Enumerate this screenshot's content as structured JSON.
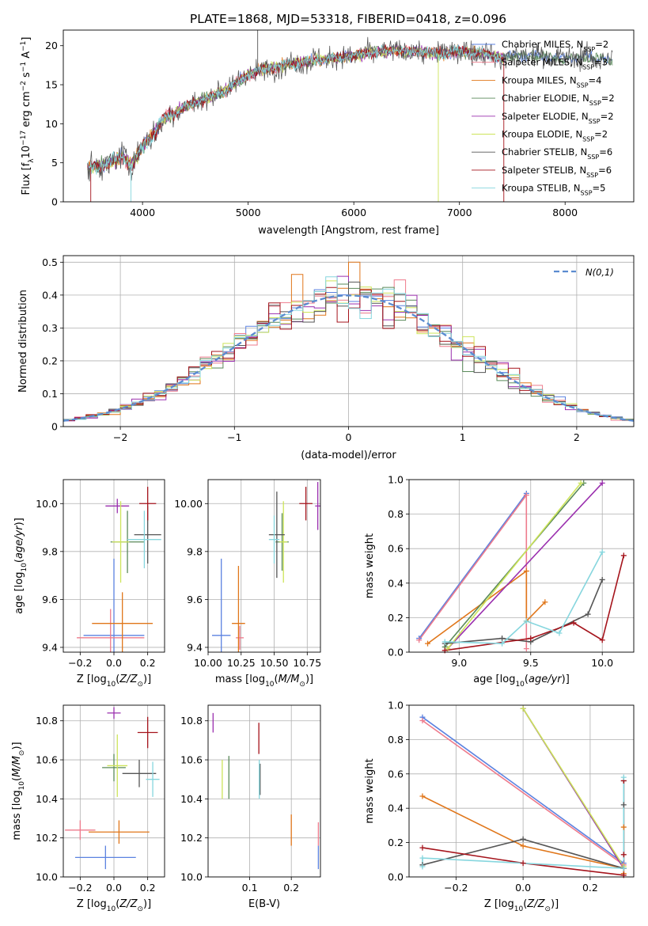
{
  "title": "PLATE=1868, MJD=53318, FIBERID=0418, z=0.096",
  "colors": {
    "Chabrier MILES": "#5b82e0",
    "Salpeter MILES": "#ee7b8c",
    "Kroupa MILES": "#e0761a",
    "Chabrier ELODIE": "#5a8a5a",
    "Salpeter ELODIE": "#9a2fae",
    "Kroupa ELODIE": "#cde45a",
    "Chabrier STELIB": "#555555",
    "Salpeter STELIB": "#a5141c",
    "Kroupa STELIB": "#86d6de",
    "gauss": "#5b8bd0"
  },
  "chart_data": [
    {
      "id": "spectrum",
      "type": "line",
      "xlabel": "wavelength [Angstrom, rest frame]",
      "ylabel": "Flux [f_λ 10^-17 erg cm^-2 s^-1 A^-1]",
      "xlim": [
        3250,
        8650
      ],
      "ylim": [
        0,
        22
      ],
      "xticks": [
        4000,
        5000,
        6000,
        7000,
        8000
      ],
      "yticks": [
        0,
        5,
        10,
        15,
        20
      ],
      "legend": "top-right",
      "data_x_range": [
        3480,
        8450
      ],
      "anchors": {
        "x": [
          3480,
          3600,
          3700,
          3800,
          3900,
          4000,
          4100,
          4200,
          4400,
          4600,
          4800,
          5000,
          5200,
          5400,
          5600,
          5800,
          6000,
          6200,
          6400,
          6600,
          6800,
          7000,
          7200,
          7400,
          7600,
          7800,
          8000,
          8200,
          8450
        ],
        "y": [
          4.4,
          4.6,
          5.0,
          5.8,
          4.8,
          7.2,
          8.6,
          10.6,
          12.2,
          13.2,
          14.4,
          16.3,
          17.2,
          17.6,
          18.1,
          18.4,
          18.7,
          19.2,
          19.4,
          19.2,
          19.0,
          19.3,
          19.1,
          18.5,
          18.8,
          18.7,
          18.3,
          18.6,
          18.0
        ]
      },
      "series": [
        {
          "name": "Chabrier MILES",
          "nssp": "2"
        },
        {
          "name": "Salpeter MILES",
          "nssp": "3"
        },
        {
          "name": "Kroupa MILES",
          "nssp": "4"
        },
        {
          "name": "Chabrier ELODIE",
          "nssp": "2"
        },
        {
          "name": "Salpeter ELODIE",
          "nssp": "2"
        },
        {
          "name": "Kroupa ELODIE",
          "nssp": "2"
        },
        {
          "name": "Chabrier STELIB",
          "nssp": "6"
        },
        {
          "name": "Salpeter STELIB",
          "nssp": "6"
        },
        {
          "name": "Kroupa STELIB",
          "nssp": "5"
        }
      ],
      "spikes": [
        {
          "series": "Chabrier STELIB",
          "x": 5090,
          "y_high": 22
        },
        {
          "series": "Kroupa ELODIE",
          "x": 6800,
          "y_low": 0
        },
        {
          "series": "Salpeter STELIB",
          "x": 7420,
          "y_low": 0
        },
        {
          "series": "Kroupa STELIB",
          "x": 3890,
          "y_low": 0
        },
        {
          "series": "Salpeter STELIB",
          "x": 3510,
          "y_low": 0
        }
      ]
    },
    {
      "id": "residuals",
      "type": "line",
      "xlabel": "(data-model)/error",
      "ylabel": "Normed distribution",
      "xlim": [
        -2.5,
        2.5
      ],
      "ylim": [
        0,
        0.52
      ],
      "xticks": [
        -2,
        -1,
        0,
        1,
        2
      ],
      "yticks": [
        0.0,
        0.1,
        0.2,
        0.3,
        0.4,
        0.5
      ],
      "legend": "top-right",
      "legend_label": "N(0,1)",
      "bin_width": 0.1,
      "bin_start": -2.5,
      "bins": 50
    },
    {
      "id": "age-vs-Z",
      "type": "scatter",
      "xlabel": "Z [log10(Z/Z⊙)]",
      "ylabel": "age  [log10(age/yr)]",
      "xlim": [
        -0.3,
        0.3
      ],
      "ylim": [
        9.38,
        10.1
      ],
      "xticks": [
        -0.2,
        0.0,
        0.2
      ],
      "yticks": [
        9.4,
        9.6,
        9.8,
        10.0
      ],
      "points": [
        {
          "series": "Chabrier MILES",
          "x": 0.0,
          "y": 9.45,
          "xerr": 0.18,
          "yerr": 0.32
        },
        {
          "series": "Salpeter MILES",
          "x": -0.02,
          "y": 9.44,
          "xerr": 0.2,
          "yerr": 0.12
        },
        {
          "series": "Kroupa MILES",
          "x": 0.05,
          "y": 9.5,
          "xerr": 0.18,
          "yerr": 0.13
        },
        {
          "series": "Chabrier ELODIE",
          "x": 0.08,
          "y": 9.84,
          "xerr": 0.1,
          "yerr": 0.13
        },
        {
          "series": "Salpeter ELODIE",
          "x": 0.02,
          "y": 9.99,
          "xerr": 0.07,
          "yerr": 0.03
        },
        {
          "series": "Kroupa ELODIE",
          "x": 0.04,
          "y": 9.84,
          "xerr": 0.05,
          "yerr": 0.17
        },
        {
          "series": "Chabrier STELIB",
          "x": 0.2,
          "y": 9.87,
          "xerr": 0.08,
          "yerr": 0.12
        },
        {
          "series": "Salpeter STELIB",
          "x": 0.2,
          "y": 10.0,
          "xerr": 0.05,
          "yerr": 0.07
        },
        {
          "series": "Kroupa STELIB",
          "x": 0.18,
          "y": 9.85,
          "xerr": 0.1,
          "yerr": 0.12
        }
      ]
    },
    {
      "id": "age-vs-mass",
      "type": "scatter",
      "xlabel": "mass [log10(M/M⊙)]",
      "ylabel": "",
      "xlim": [
        10.0,
        10.85
      ],
      "ylim": [
        9.38,
        10.1
      ],
      "xticks": [
        10.0,
        10.25,
        10.5,
        10.75
      ],
      "yticks": [
        9.4,
        9.6,
        9.8,
        10.0
      ],
      "points": [
        {
          "series": "Chabrier MILES",
          "x": 10.1,
          "y": 9.45,
          "xerr": 0.07,
          "yerr": 0.32
        },
        {
          "series": "Salpeter MILES",
          "x": 10.24,
          "y": 9.44,
          "xerr": 0.03,
          "yerr": 0.05
        },
        {
          "series": "Kroupa MILES",
          "x": 10.23,
          "y": 9.5,
          "xerr": 0.05,
          "yerr": 0.24
        },
        {
          "series": "Chabrier ELODIE",
          "x": 10.56,
          "y": 9.84,
          "xerr": 0.05,
          "yerr": 0.12
        },
        {
          "series": "Salpeter ELODIE",
          "x": 10.83,
          "y": 9.99,
          "xerr": 0.02,
          "yerr": 0.1
        },
        {
          "series": "Kroupa ELODIE",
          "x": 10.57,
          "y": 9.84,
          "xerr": 0.03,
          "yerr": 0.17
        },
        {
          "series": "Chabrier STELIB",
          "x": 10.52,
          "y": 9.87,
          "xerr": 0.06,
          "yerr": 0.18
        },
        {
          "series": "Salpeter STELIB",
          "x": 10.74,
          "y": 10.0,
          "xerr": 0.05,
          "yerr": 0.07
        },
        {
          "series": "Kroupa STELIB",
          "x": 10.5,
          "y": 9.85,
          "xerr": 0.04,
          "yerr": 0.1
        }
      ]
    },
    {
      "id": "massweight-vs-age",
      "type": "line",
      "xlabel": "age  [log10(age/yr)]",
      "ylabel": "mass weight",
      "xlim": [
        8.65,
        10.22
      ],
      "ylim": [
        0,
        1
      ],
      "xticks": [
        9.0,
        9.5,
        10.0
      ],
      "yticks": [
        0.0,
        0.2,
        0.4,
        0.6,
        0.8,
        1.0
      ],
      "series": [
        {
          "name": "Chabrier MILES",
          "x": [
            8.72,
            9.47
          ],
          "y": [
            0.08,
            0.92
          ]
        },
        {
          "name": "Salpeter MILES",
          "x": [
            8.72,
            9.47,
            9.47
          ],
          "y": [
            0.07,
            0.91,
            0.02
          ]
        },
        {
          "name": "Kroupa MILES",
          "x": [
            8.78,
            9.47,
            9.47,
            9.6
          ],
          "y": [
            0.05,
            0.47,
            0.18,
            0.29
          ]
        },
        {
          "name": "Chabrier ELODIE",
          "x": [
            8.9,
            9.87
          ],
          "y": [
            0.03,
            0.98
          ]
        },
        {
          "name": "Salpeter ELODIE",
          "x": [
            8.92,
            10.0
          ],
          "y": [
            0.02,
            0.98
          ]
        },
        {
          "name": "Kroupa ELODIE",
          "x": [
            8.92,
            9.85
          ],
          "y": [
            0.02,
            0.98
          ]
        },
        {
          "name": "Chabrier STELIB",
          "x": [
            8.9,
            9.3,
            9.5,
            9.9,
            10.0
          ],
          "y": [
            0.05,
            0.08,
            0.06,
            0.22,
            0.42
          ]
        },
        {
          "name": "Salpeter STELIB",
          "x": [
            8.9,
            9.5,
            9.8,
            10.0,
            10.15
          ],
          "y": [
            0.01,
            0.08,
            0.17,
            0.07,
            0.56
          ]
        },
        {
          "name": "Kroupa STELIB",
          "x": [
            8.9,
            9.3,
            9.47,
            9.7,
            10.0
          ],
          "y": [
            0.06,
            0.05,
            0.18,
            0.11,
            0.58
          ]
        }
      ]
    },
    {
      "id": "mass-vs-Z",
      "type": "scatter",
      "xlabel": "Z [log10(Z/Z⊙)]",
      "ylabel": "mass [log10(M/M⊙)]",
      "xlim": [
        -0.3,
        0.3
      ],
      "ylim": [
        10.0,
        10.88
      ],
      "xticks": [
        -0.2,
        0.0,
        0.2
      ],
      "yticks": [
        10.0,
        10.2,
        10.4,
        10.6,
        10.8
      ],
      "points": [
        {
          "series": "Chabrier MILES",
          "x": -0.05,
          "y": 10.1,
          "xerr": 0.18,
          "yerr": 0.06
        },
        {
          "series": "Salpeter MILES",
          "x": -0.2,
          "y": 10.24,
          "xerr": 0.09,
          "yerr": 0.05
        },
        {
          "series": "Kroupa MILES",
          "x": 0.03,
          "y": 10.23,
          "xerr": 0.18,
          "yerr": 0.06
        },
        {
          "series": "Chabrier ELODIE",
          "x": 0.0,
          "y": 10.56,
          "xerr": 0.07,
          "yerr": 0.07
        },
        {
          "series": "Salpeter ELODIE",
          "x": 0.0,
          "y": 10.84,
          "xerr": 0.04,
          "yerr": 0.03
        },
        {
          "series": "Kroupa ELODIE",
          "x": 0.02,
          "y": 10.57,
          "xerr": 0.06,
          "yerr": 0.16
        },
        {
          "series": "Chabrier STELIB",
          "x": 0.15,
          "y": 10.53,
          "xerr": 0.1,
          "yerr": 0.07
        },
        {
          "series": "Salpeter STELIB",
          "x": 0.2,
          "y": 10.74,
          "xerr": 0.06,
          "yerr": 0.08
        },
        {
          "series": "Kroupa STELIB",
          "x": 0.23,
          "y": 10.5,
          "xerr": 0.04,
          "yerr": 0.09
        }
      ]
    },
    {
      "id": "mass-vs-EBV",
      "type": "scatter",
      "xlabel": "E(B-V)",
      "ylabel": "",
      "xlim": [
        0.0,
        0.27
      ],
      "ylim": [
        10.0,
        10.88
      ],
      "xticks": [
        0.1,
        0.2
      ],
      "yticks": [
        10.0,
        10.2,
        10.4,
        10.6,
        10.8
      ],
      "points": [
        {
          "series": "Chabrier MILES",
          "x": 0.265,
          "y": 10.1,
          "yerr": 0.06
        },
        {
          "series": "Salpeter MILES",
          "x": 0.265,
          "y": 10.22,
          "yerr": 0.06
        },
        {
          "series": "Kroupa MILES",
          "x": 0.2,
          "y": 10.24,
          "yerr": 0.08
        },
        {
          "series": "Chabrier ELODIE",
          "x": 0.05,
          "y": 10.51,
          "yerr": 0.11
        },
        {
          "series": "Salpeter ELODIE",
          "x": 0.012,
          "y": 10.79,
          "yerr": 0.05
        },
        {
          "series": "Kroupa ELODIE",
          "x": 0.034,
          "y": 10.5,
          "yerr": 0.1
        },
        {
          "series": "Chabrier STELIB",
          "x": 0.125,
          "y": 10.5,
          "yerr": 0.08
        },
        {
          "series": "Salpeter STELIB",
          "x": 0.122,
          "y": 10.71,
          "yerr": 0.08
        },
        {
          "series": "Kroupa STELIB",
          "x": 0.123,
          "y": 10.5,
          "yerr": 0.1
        }
      ]
    },
    {
      "id": "massweight-vs-Z",
      "type": "line",
      "xlabel": "Z [log10(Z/Z⊙)]",
      "ylabel": "mass weight",
      "xlim": [
        -0.34,
        0.33
      ],
      "ylim": [
        0,
        1
      ],
      "xticks": [
        -0.2,
        0.0,
        0.2
      ],
      "yticks": [
        0.0,
        0.2,
        0.4,
        0.6,
        0.8,
        1.0
      ],
      "series": [
        {
          "name": "Chabrier MILES",
          "x": [
            -0.3,
            0.3
          ],
          "y": [
            0.93,
            0.08
          ]
        },
        {
          "name": "Salpeter MILES",
          "x": [
            -0.3,
            0.3
          ],
          "y": [
            0.91,
            0.07
          ]
        },
        {
          "name": "Kroupa MILES",
          "x": [
            -0.3,
            0.0,
            0.3,
            0.3,
            0.3
          ],
          "y": [
            0.47,
            0.18,
            0.05,
            0.29,
            0.02
          ]
        },
        {
          "name": "Chabrier ELODIE",
          "x": [
            0.0,
            0.3
          ],
          "y": [
            0.98,
            0.05
          ]
        },
        {
          "name": "Salpeter ELODIE",
          "x": [
            0.0,
            0.3
          ],
          "y": [
            0.98,
            0.05
          ]
        },
        {
          "name": "Kroupa ELODIE",
          "x": [
            0.0,
            0.3
          ],
          "y": [
            0.98,
            0.06
          ]
        },
        {
          "name": "Chabrier STELIB",
          "x": [
            -0.3,
            0.0,
            0.3,
            0.3,
            0.3
          ],
          "y": [
            0.07,
            0.22,
            0.05,
            0.42,
            0.56
          ]
        },
        {
          "name": "Salpeter STELIB",
          "x": [
            -0.3,
            0.0,
            0.3,
            0.3,
            0.3
          ],
          "y": [
            0.17,
            0.08,
            0.01,
            0.56,
            0.13
          ]
        },
        {
          "name": "Kroupa STELIB",
          "x": [
            -0.3,
            -0.3,
            0.3,
            0.3
          ],
          "y": [
            0.06,
            0.11,
            0.05,
            0.58
          ]
        }
      ]
    }
  ]
}
